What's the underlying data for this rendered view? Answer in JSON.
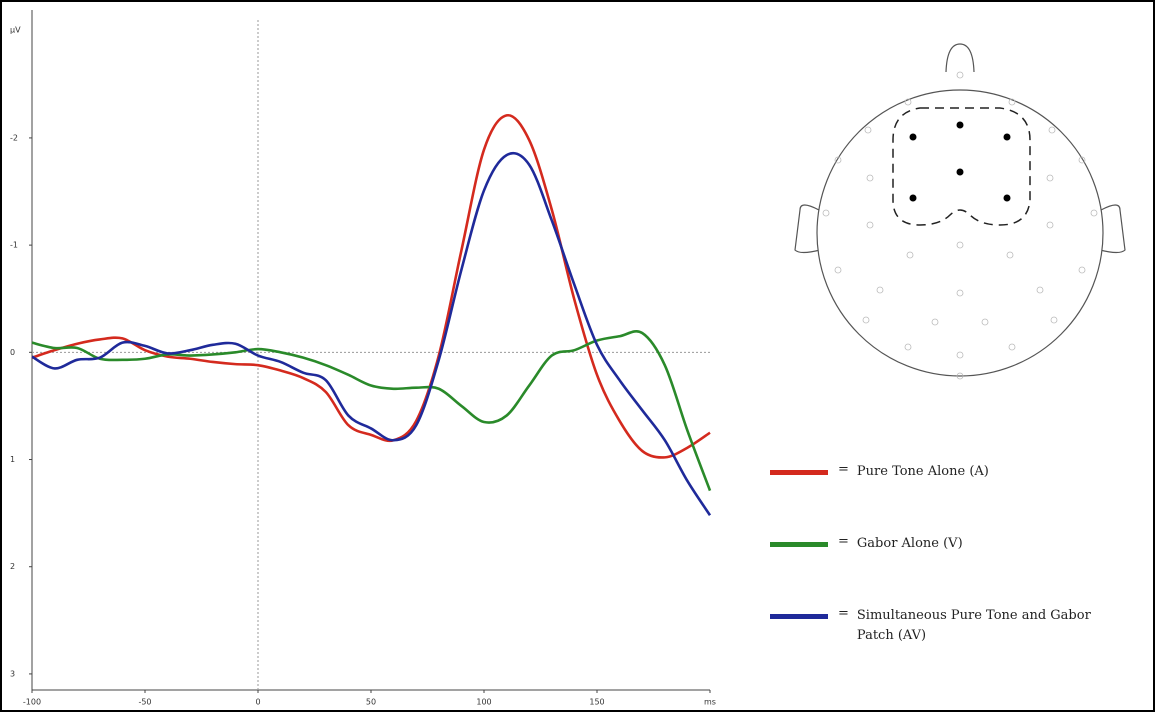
{
  "chart_data": {
    "type": "line",
    "y_label": "µV",
    "x": [
      -100,
      -90,
      -80,
      -70,
      -60,
      -50,
      -40,
      -30,
      -20,
      -10,
      0,
      10,
      20,
      30,
      40,
      50,
      60,
      70,
      80,
      90,
      100,
      110,
      120,
      130,
      140,
      150,
      160,
      170,
      180,
      190,
      200
    ],
    "series": [
      {
        "name": "Pure Tone Alone (A)",
        "color": "#d42a1e",
        "values": [
          0.05,
          -0.02,
          -0.08,
          -0.12,
          -0.13,
          -0.02,
          0.04,
          0.06,
          0.09,
          0.11,
          0.12,
          0.17,
          0.24,
          0.37,
          0.68,
          0.77,
          0.82,
          0.64,
          0.03,
          -0.95,
          -1.89,
          -2.21,
          -1.98,
          -1.33,
          -0.49,
          0.21,
          0.64,
          0.92,
          0.98,
          0.89,
          0.75
        ]
      },
      {
        "name": "Gabor Alone (V)",
        "color": "#2a8a2a",
        "values": [
          -0.09,
          -0.04,
          -0.04,
          0.06,
          0.07,
          0.06,
          0.02,
          0.03,
          0.02,
          0,
          -0.03,
          0,
          0.05,
          0.12,
          0.21,
          0.31,
          0.34,
          0.33,
          0.34,
          0.5,
          0.65,
          0.59,
          0.31,
          0.03,
          -0.02,
          -0.11,
          -0.15,
          -0.18,
          0.12,
          0.73,
          1.29
        ]
      },
      {
        "name": "Simultaneous Pure Tone and Gabor Patch (AV)",
        "color": "#1f2a9a",
        "values": [
          0.04,
          0.15,
          0.07,
          0.05,
          -0.09,
          -0.06,
          0.01,
          -0.02,
          -0.07,
          -0.08,
          0.03,
          0.09,
          0.19,
          0.26,
          0.59,
          0.71,
          0.82,
          0.68,
          0.07,
          -0.77,
          -1.51,
          -1.84,
          -1.75,
          -1.23,
          -0.63,
          -0.07,
          0.26,
          0.54,
          0.82,
          1.2,
          1.52
        ]
      }
    ],
    "legend_separator": "=",
    "xlim": [
      -100,
      200
    ],
    "xticks": [
      -100,
      -50,
      0,
      50,
      100,
      150,
      {
        "value": 200,
        "label": "ms"
      }
    ],
    "ylim": [
      -3.1,
      3.15
    ],
    "y_inverted": true,
    "yticks": [
      -2,
      -1,
      0,
      1,
      2,
      3
    ]
  }
}
